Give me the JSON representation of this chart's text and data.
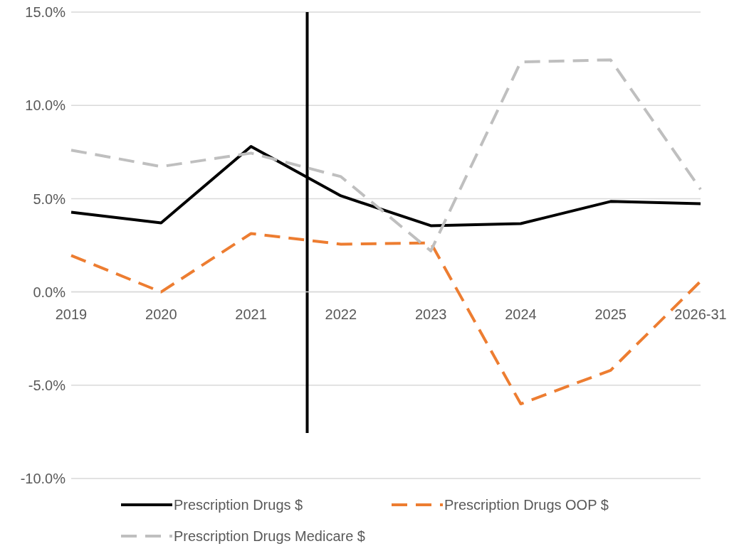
{
  "chart_data": {
    "type": "line",
    "categories": [
      "2019",
      "2020",
      "2021",
      "2022",
      "2023",
      "2024",
      "2025",
      "2026-31"
    ],
    "series": [
      {
        "name": "Prescription Drugs $",
        "color": "#000000",
        "line_style": "solid",
        "values": [
          4.27,
          3.7,
          7.8,
          5.15,
          3.55,
          3.66,
          4.85,
          4.73
        ]
      },
      {
        "name": "Prescription Drugs OOP $",
        "color": "#ed7d31",
        "line_style": "dashed",
        "values": [
          1.95,
          0,
          3.13,
          2.56,
          2.63,
          -6.0,
          -4.2,
          0.57
        ]
      },
      {
        "name": "Prescription Drugs Medicare $",
        "color": "#bfbfbf",
        "line_style": "dashed",
        "values": [
          7.6,
          6.72,
          7.44,
          6.18,
          2.2,
          12.33,
          12.44,
          5.5
        ]
      }
    ],
    "ylim": [
      -10,
      15
    ],
    "yticks": [
      {
        "value": -10,
        "label": "-10.0%"
      },
      {
        "value": -5,
        "label": "-5.0%"
      },
      {
        "value": 0,
        "label": "0.0%"
      },
      {
        "value": 5,
        "label": "5.0%"
      },
      {
        "value": 10,
        "label": "10.0%"
      },
      {
        "value": 15,
        "label": "15.0%"
      }
    ],
    "grid": "y",
    "legend": "bottom",
    "marker": "none"
  }
}
